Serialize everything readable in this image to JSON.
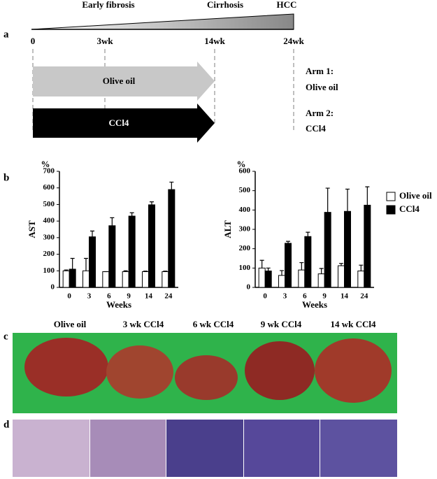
{
  "panel_labels": [
    "a",
    "b",
    "c",
    "d"
  ],
  "timeline": {
    "stages": [
      "Early fibrosis",
      "Cirrhosis",
      "HCC"
    ],
    "timepoints": [
      "0",
      "3wk",
      "14wk",
      "24wk"
    ],
    "arrows": [
      "Olive oil",
      "CCl4"
    ],
    "arms": [
      [
        "Arm 1:",
        "Olive oil"
      ],
      [
        "Arm 2:",
        "CCl4"
      ]
    ]
  },
  "chart_data": [
    {
      "type": "bar",
      "y_label": "AST",
      "y_unit": "%",
      "x_label": "Weeks",
      "categories": [
        "0",
        "3",
        "6",
        "9",
        "14",
        "24"
      ],
      "ylim": [
        0,
        700
      ],
      "yticks": [
        0,
        100,
        200,
        300,
        400,
        500,
        600,
        700
      ],
      "series": [
        {
          "color": "#ffffff",
          "values": [
            100,
            100,
            95,
            95,
            95,
            95
          ],
          "errors": [
            5,
            75,
            0,
            5,
            3,
            3
          ]
        },
        {
          "color": "#000000",
          "values": [
            110,
            305,
            372,
            430,
            498,
            590
          ],
          "errors": [
            65,
            35,
            48,
            20,
            18,
            45
          ]
        }
      ]
    },
    {
      "type": "bar",
      "y_label": "ALT",
      "y_unit": "%",
      "x_label": "Weeks",
      "categories": [
        "0",
        "3",
        "6",
        "9",
        "14",
        "24"
      ],
      "ylim": [
        0,
        600
      ],
      "yticks": [
        0,
        100,
        200,
        300,
        400,
        500,
        600
      ],
      "series": [
        {
          "name": "Olive oil",
          "color": "#ffffff",
          "values": [
            100,
            62,
            90,
            70,
            112,
            85
          ],
          "errors": [
            40,
            25,
            38,
            28,
            12,
            30
          ]
        },
        {
          "name": "CCl4",
          "color": "#000000",
          "values": [
            85,
            228,
            263,
            388,
            393,
            425
          ],
          "errors": [
            15,
            10,
            22,
            125,
            115,
            95
          ]
        }
      ]
    }
  ],
  "photos": {
    "labels": [
      "Olive oil",
      "3 wk CCl4",
      "6 wk CCl4",
      "9 wk CCl4",
      "14 wk CCl4"
    ]
  }
}
